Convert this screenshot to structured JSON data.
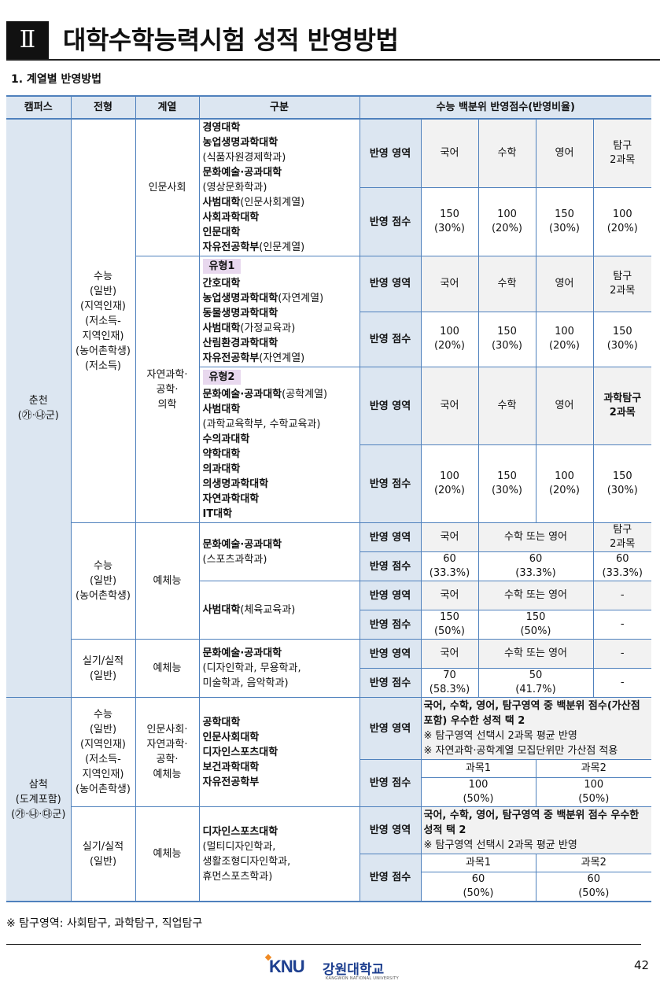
{
  "header": {
    "roman": "Ⅱ",
    "title": "대학수학능력시험 성적 반영방법"
  },
  "section_title": "1. 계열별 반영방법",
  "table": {
    "columns": [
      "캠퍼스",
      "전형",
      "계열",
      "구분",
      "수능 백분위 반영점수(반영비율)"
    ],
    "area_label": "반영 영역",
    "score_label": "반영 점수",
    "campuses": [
      {
        "name": [
          "춘천",
          "(㉮·㉯군)"
        ],
        "tracks": [
          {
            "name": [
              "수능",
              "(일반)",
              "(지역인재)",
              "(저소득-",
              "지역인재)",
              "(농어촌학생)",
              "(저소득)"
            ],
            "groups": [
              {
                "field": [
                  "인문사회"
                ],
                "sections": [
                  {
                    "units": [
                      {
                        "b": "경영대학"
                      },
                      {
                        "b": "농업생명과학대학"
                      },
                      {
                        "n": "(식품자원경제학과)"
                      },
                      {
                        "b": "문화예술·공과대학"
                      },
                      {
                        "n": "(영상문화학과)"
                      },
                      {
                        "b": "사범대학",
                        "n": "(인문사회계열)"
                      },
                      {
                        "b": "사회과학대학"
                      },
                      {
                        "b": "인문대학"
                      },
                      {
                        "b": "자유전공학부",
                        "n": "(인문계열)"
                      }
                    ],
                    "area": [
                      "국어",
                      "수학",
                      "영어",
                      "탐구\n2과목"
                    ],
                    "score": [
                      "150\n(30%)",
                      "100\n(20%)",
                      "150\n(30%)",
                      "100\n(20%)"
                    ]
                  }
                ]
              },
              {
                "field": [
                  "자연과학·",
                  "공학·",
                  "의학"
                ],
                "sections": [
                  {
                    "badge": "유형1",
                    "units": [
                      {
                        "b": "간호대학"
                      },
                      {
                        "b": "농업생명과학대학",
                        "n": "(자연계열)"
                      },
                      {
                        "b": "동물생명과학대학"
                      },
                      {
                        "b": "사범대학",
                        "n": "(가정교육과)"
                      },
                      {
                        "b": "산림환경과학대학"
                      },
                      {
                        "b": "자유전공학부",
                        "n": "(자연계열)"
                      }
                    ],
                    "area": [
                      "국어",
                      "수학",
                      "영어",
                      "탐구\n2과목"
                    ],
                    "score": [
                      "100\n(20%)",
                      "150\n(30%)",
                      "100\n(20%)",
                      "150\n(30%)"
                    ]
                  },
                  {
                    "badge": "유형2",
                    "units": [
                      {
                        "b": "문화예술·공과대학",
                        "n": "(공학계열)"
                      },
                      {
                        "b": "사범대학"
                      },
                      {
                        "n": "(과학교육학부, 수학교육과)"
                      },
                      {
                        "b": "수의과대학"
                      },
                      {
                        "b": "약학대학"
                      },
                      {
                        "b": "의과대학"
                      },
                      {
                        "b": "의생명과학대학"
                      },
                      {
                        "b": "자연과학대학"
                      },
                      {
                        "b": "IT대학"
                      }
                    ],
                    "area": [
                      "국어",
                      "수학",
                      "영어",
                      {
                        "t": "과학탐구\n2과목",
                        "bold": true
                      }
                    ],
                    "score": [
                      "100\n(20%)",
                      "150\n(30%)",
                      "100\n(20%)",
                      "150\n(30%)"
                    ]
                  }
                ]
              }
            ]
          },
          {
            "name": [
              "수능",
              "(일반)",
              "(농어촌학생)"
            ],
            "groups": [
              {
                "field": [
                  "예체능"
                ],
                "sections": [
                  {
                    "units": [
                      {
                        "b": "문화예술·공과대학"
                      },
                      {
                        "n": "(스포츠과학과)"
                      }
                    ],
                    "area": [
                      "국어",
                      "수학 또는 영어",
                      "탐구\n2과목"
                    ],
                    "score": [
                      "60\n(33.3%)",
                      "60\n(33.3%)",
                      "60\n(33.3%)"
                    ]
                  },
                  {
                    "units": [
                      {
                        "b": "사범대학",
                        "n": "(체육교육과)"
                      }
                    ],
                    "area": [
                      "국어",
                      "수학 또는 영어",
                      "-"
                    ],
                    "score": [
                      "150\n(50%)",
                      "150\n(50%)",
                      "-"
                    ]
                  }
                ]
              }
            ]
          },
          {
            "name": [
              "실기/실적",
              "(일반)"
            ],
            "groups": [
              {
                "field": [
                  "예체능"
                ],
                "sections": [
                  {
                    "units": [
                      {
                        "b": "문화예술·공과대학"
                      },
                      {
                        "n": "(디자인학과, 무용학과,"
                      },
                      {
                        "n": " 미술학과, 음악학과)"
                      }
                    ],
                    "area": [
                      "국어",
                      "수학 또는 영어",
                      "-"
                    ],
                    "score": [
                      "70\n(58.3%)",
                      "50\n(41.7%)",
                      "-"
                    ]
                  }
                ]
              }
            ]
          }
        ]
      },
      {
        "name": [
          "삼척",
          "(도계포함)",
          "(㉮·㉯·㉰군)"
        ],
        "tracks": [
          {
            "name": [
              "수능",
              "(일반)",
              "(지역인재)",
              "(저소득-",
              "지역인재)",
              "(농어촌학생)"
            ],
            "groups": [
              {
                "field": [
                  "인문사회·",
                  "자연과학·",
                  "공학·",
                  "예체능"
                ],
                "sections": [
                  {
                    "units": [
                      {
                        "b": "공학대학"
                      },
                      {
                        "b": "인문사회대학"
                      },
                      {
                        "b": "디자인스포츠대학"
                      },
                      {
                        "b": "보건과학대학"
                      },
                      {
                        "b": "자유전공학부"
                      }
                    ],
                    "area_text": [
                      {
                        "b": "국어, 수학, 영어, 탐구영역 중 백분위 점수(가산점 포함) 우수한 성적 택 2"
                      },
                      {
                        "n": "※ 탐구영역 선택시 2과목 평균 반영"
                      },
                      {
                        "n": "※ 자연과학·공학계열 모집단위만 가산점 적용"
                      }
                    ],
                    "subjects": [
                      "과목1",
                      "과목2"
                    ],
                    "score": [
                      "100\n(50%)",
                      "100\n(50%)"
                    ]
                  }
                ]
              }
            ]
          },
          {
            "name": [
              "실기/실적",
              "(일반)"
            ],
            "groups": [
              {
                "field": [
                  "예체능"
                ],
                "sections": [
                  {
                    "units": [
                      {
                        "b": "디자인스포츠대학"
                      },
                      {
                        "n": "(멀티디자인학과,"
                      },
                      {
                        "n": " 생활조형디자인학과,"
                      },
                      {
                        "n": " 휴먼스포츠학과)"
                      }
                    ],
                    "area_text": [
                      {
                        "b": "국어, 수학, 영어, 탐구영역 중 백분위 점수 우수한 성적 택 2"
                      },
                      {
                        "n": "※ 탐구영역 선택시 2과목 평균 반영"
                      }
                    ],
                    "subjects": [
                      "과목1",
                      "과목2"
                    ],
                    "score": [
                      "60\n(50%)",
                      "60\n(50%)"
                    ]
                  }
                ]
              }
            ]
          }
        ]
      }
    ]
  },
  "footnote": "※ 탐구영역: 사회탐구, 과학탐구, 직업탐구",
  "footer": {
    "logo_text": "KNU 강원대학교",
    "logo_eng": "KANGWON NATIONAL UNIVERSITY",
    "page": "42"
  },
  "colors": {
    "border": "#4f81bd",
    "header_bg": "#dce6f1",
    "area_bg": "#f2f2f2",
    "badge_bg": "#e8d8ee"
  }
}
